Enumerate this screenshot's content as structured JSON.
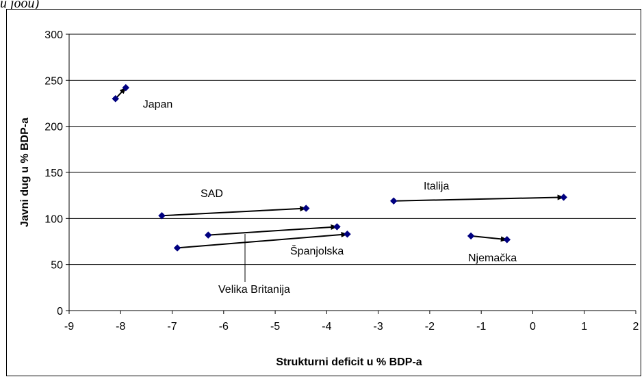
{
  "header_fragment": "u joou)",
  "chart_data": {
    "type": "scatter",
    "title": "",
    "xlabel": "Strukturni deficit u % BDP-a",
    "ylabel": "Javni dug u % BDP-a",
    "xlim": [
      -9,
      2
    ],
    "ylim": [
      0,
      300
    ],
    "x_ticks": [
      -9,
      -8,
      -7,
      -6,
      -5,
      -4,
      -3,
      -2,
      -1,
      0,
      1,
      2
    ],
    "y_ticks": [
      0,
      50,
      100,
      150,
      200,
      250,
      300
    ],
    "grid": "horizontal",
    "legend": "none",
    "marker_color": "#000080",
    "arrows": [
      {
        "label": "Japan",
        "from": [
          -8.1,
          230
        ],
        "to": [
          -7.9,
          242
        ]
      },
      {
        "label": "SAD",
        "from": [
          -7.2,
          103
        ],
        "to": [
          -4.4,
          111
        ]
      },
      {
        "label": "Italija",
        "from": [
          -2.7,
          119
        ],
        "to": [
          0.6,
          123
        ]
      },
      {
        "label": "Velika Britanija",
        "from": [
          -6.3,
          82
        ],
        "to": [
          -3.8,
          91
        ]
      },
      {
        "label": "Španjolska",
        "from": [
          -6.9,
          68
        ],
        "to": [
          -3.6,
          83
        ]
      },
      {
        "label": "Njemačka",
        "from": [
          -1.2,
          81
        ],
        "to": [
          -0.5,
          77
        ]
      }
    ]
  }
}
